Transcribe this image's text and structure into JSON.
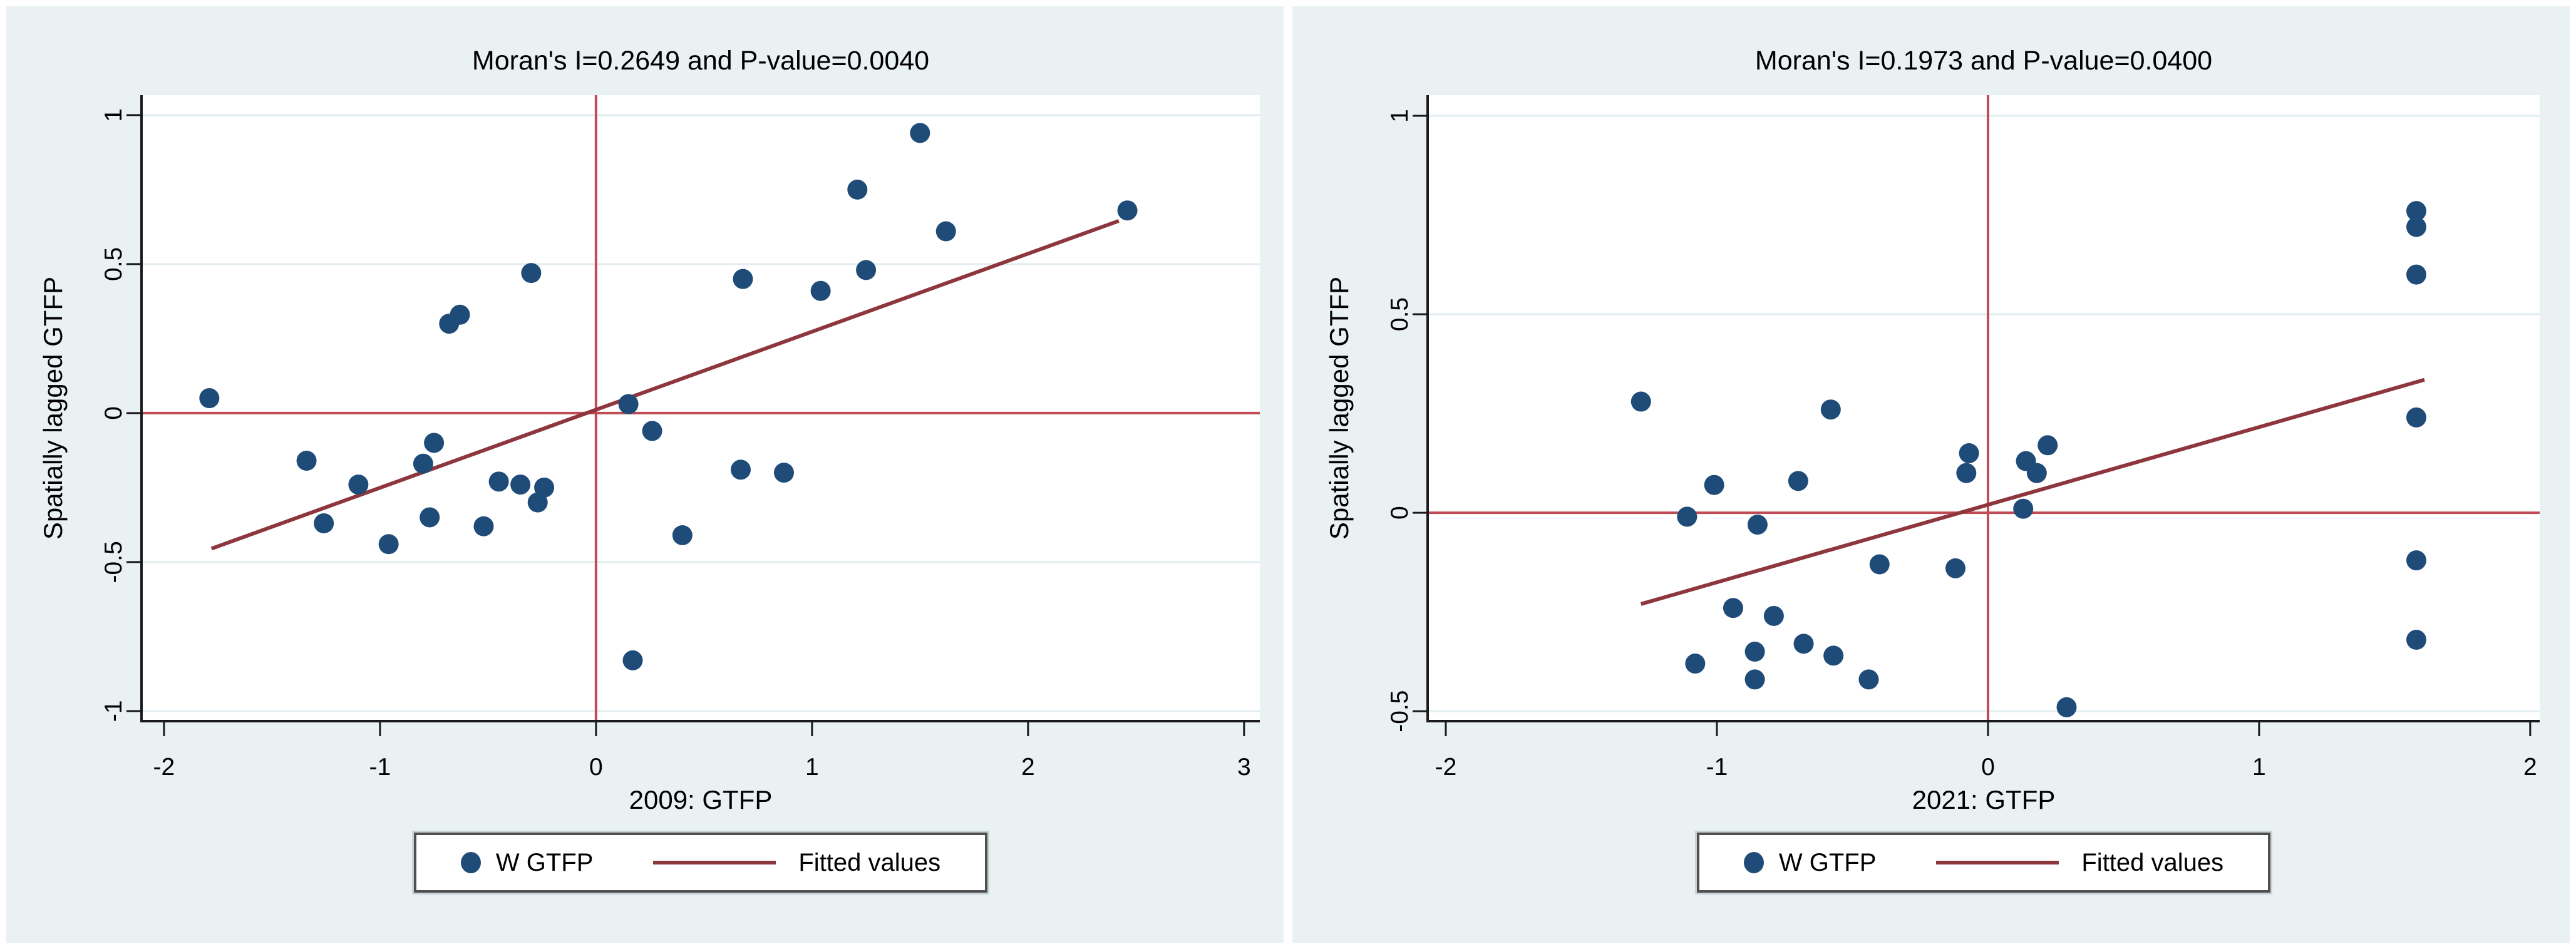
{
  "window": {
    "background": "#ffffff"
  },
  "colors": {
    "panel_background": "#eaf1f3",
    "plot_background": "#ffffff",
    "gridline": "#e2edf0",
    "axis": "#1a1a1a",
    "text": "#000000",
    "marker": "#1f4b78",
    "fitted_line": "#8e363e",
    "reference_line": "#c04b55",
    "legend_border": "#4f4f4f"
  },
  "chart_data": [
    {
      "type": "scatter",
      "title": "Moran's I=0.2649 and P-value=0.0040",
      "moran_i": 0.2649,
      "p_value": 0.004,
      "xlabel": "2009: GTFP",
      "ylabel": "Spatially lagged GTFP",
      "xlim": [
        -2.104,
        3.073
      ],
      "ylim": [
        -1.034,
        1.067
      ],
      "grid": "horizontal",
      "x_ticks": [
        {
          "value": -2,
          "label": "-2"
        },
        {
          "value": -1,
          "label": "-1"
        },
        {
          "value": 0,
          "label": "0"
        },
        {
          "value": 1,
          "label": "1"
        },
        {
          "value": 2,
          "label": "2"
        },
        {
          "value": 3,
          "label": "3"
        }
      ],
      "y_ticks": [
        {
          "value": -1,
          "label": "-1"
        },
        {
          "value": -0.5,
          "label": "-0.5"
        },
        {
          "value": 0,
          "label": "0"
        },
        {
          "value": 0.5,
          "label": "0.5"
        },
        {
          "value": 1,
          "label": "1"
        }
      ],
      "reference_lines": {
        "x": 0,
        "y": 0
      },
      "fitted_line": {
        "x1": -1.78,
        "y1": -0.455,
        "x2": 2.42,
        "y2": 0.645
      },
      "legend": {
        "position": "bottom-center",
        "items": [
          {
            "marker": "dot",
            "label": "W GTFP"
          },
          {
            "marker": "line",
            "label": "Fitted values"
          }
        ]
      },
      "points": [
        [
          -1.79,
          0.05
        ],
        [
          -1.34,
          -0.16
        ],
        [
          -1.26,
          -0.37
        ],
        [
          -1.1,
          -0.24
        ],
        [
          -0.96,
          -0.44
        ],
        [
          -0.8,
          -0.17
        ],
        [
          -0.77,
          -0.35
        ],
        [
          -0.75,
          -0.1
        ],
        [
          -0.68,
          0.3
        ],
        [
          -0.63,
          0.33
        ],
        [
          -0.52,
          -0.38
        ],
        [
          -0.45,
          -0.23
        ],
        [
          -0.35,
          -0.24
        ],
        [
          -0.3,
          0.47
        ],
        [
          -0.27,
          -0.3
        ],
        [
          -0.24,
          -0.25
        ],
        [
          0.15,
          0.03
        ],
        [
          0.17,
          -0.83
        ],
        [
          0.26,
          -0.06
        ],
        [
          0.4,
          -0.41
        ],
        [
          0.67,
          -0.19
        ],
        [
          0.68,
          0.45
        ],
        [
          0.87,
          -0.2
        ],
        [
          1.04,
          0.41
        ],
        [
          1.21,
          0.75
        ],
        [
          1.25,
          0.48
        ],
        [
          1.5,
          0.94
        ],
        [
          1.62,
          0.61
        ],
        [
          2.46,
          0.68
        ]
      ]
    },
    {
      "type": "scatter",
      "title": "Moran's I=0.1973 and P-value=0.0400",
      "moran_i": 0.1973,
      "p_value": 0.04,
      "xlabel": "2021: GTFP",
      "ylabel": "Spatially lagged GTFP",
      "xlim": [
        -2.067,
        2.035
      ],
      "ylim": [
        -0.525,
        1.052
      ],
      "grid": "horizontal",
      "x_ticks": [
        {
          "value": -2,
          "label": "-2"
        },
        {
          "value": -1,
          "label": "-1"
        },
        {
          "value": 0,
          "label": "0"
        },
        {
          "value": 1,
          "label": "1"
        },
        {
          "value": 2,
          "label": "2"
        }
      ],
      "y_ticks": [
        {
          "value": -0.5,
          "label": "-0.5"
        },
        {
          "value": 0,
          "label": "0"
        },
        {
          "value": 0.5,
          "label": "0.5"
        },
        {
          "value": 1,
          "label": "1"
        }
      ],
      "reference_lines": {
        "x": 0,
        "y": 0
      },
      "fitted_line": {
        "x1": -1.28,
        "y1": -0.23,
        "x2": 1.61,
        "y2": 0.335
      },
      "legend": {
        "position": "bottom-center",
        "items": [
          {
            "marker": "dot",
            "label": "W GTFP"
          },
          {
            "marker": "line",
            "label": "Fitted values"
          }
        ]
      },
      "points": [
        [
          -1.28,
          0.28
        ],
        [
          -1.11,
          -0.01
        ],
        [
          -1.08,
          -0.38
        ],
        [
          -1.01,
          0.07
        ],
        [
          -0.94,
          -0.24
        ],
        [
          -0.86,
          -0.35
        ],
        [
          -0.86,
          -0.42
        ],
        [
          -0.85,
          -0.03
        ],
        [
          -0.79,
          -0.26
        ],
        [
          -0.7,
          0.08
        ],
        [
          -0.68,
          -0.33
        ],
        [
          -0.58,
          0.26
        ],
        [
          -0.57,
          -0.36
        ],
        [
          -0.44,
          -0.42
        ],
        [
          -0.4,
          -0.13
        ],
        [
          -0.12,
          -0.14
        ],
        [
          -0.08,
          0.1
        ],
        [
          -0.07,
          0.15
        ],
        [
          0.13,
          0.01
        ],
        [
          0.14,
          0.13
        ],
        [
          0.18,
          0.1
        ],
        [
          0.22,
          0.17
        ],
        [
          0.29,
          -0.49
        ],
        [
          1.58,
          0.76
        ],
        [
          1.58,
          0.72
        ],
        [
          1.58,
          0.6
        ],
        [
          1.58,
          0.24
        ],
        [
          1.58,
          -0.12
        ],
        [
          1.58,
          -0.32
        ]
      ]
    }
  ]
}
